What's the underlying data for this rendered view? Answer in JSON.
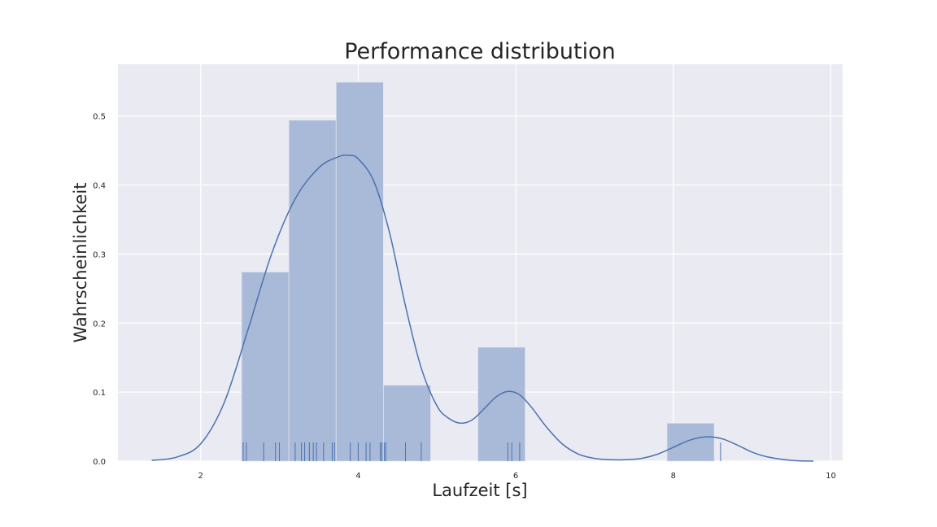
{
  "chart_data": {
    "type": "histogram",
    "title": "Performance distribution",
    "xlabel": "Laufzeit [s]",
    "ylabel": "Wahrscheinlichkeit",
    "xlim": [
      0.95,
      10.15
    ],
    "ylim": [
      0.0,
      0.575
    ],
    "xticks": [
      2,
      4,
      6,
      8,
      10
    ],
    "yticks": [
      0.0,
      0.1,
      0.2,
      0.3,
      0.4,
      0.5
    ],
    "grid": true,
    "colors": {
      "background": "#eaeaf2",
      "grid": "#ffffff",
      "bar": "#a9b9d8",
      "line": "#4c72b0",
      "bar_edge": "#dfe4ee"
    },
    "histogram": {
      "bins": [
        {
          "x0": 2.52,
          "x1": 3.12,
          "density": 0.274
        },
        {
          "x0": 3.12,
          "x1": 3.72,
          "density": 0.494
        },
        {
          "x0": 3.72,
          "x1": 4.32,
          "density": 0.549
        },
        {
          "x0": 4.32,
          "x1": 4.92,
          "density": 0.11
        },
        {
          "x0": 4.92,
          "x1": 5.52,
          "density": 0.0
        },
        {
          "x0": 5.52,
          "x1": 6.12,
          "density": 0.165
        },
        {
          "x0": 6.12,
          "x1": 6.72,
          "density": 0.0
        },
        {
          "x0": 6.72,
          "x1": 7.32,
          "density": 0.0
        },
        {
          "x0": 7.32,
          "x1": 7.92,
          "density": 0.0
        },
        {
          "x0": 7.92,
          "x1": 8.52,
          "density": 0.055
        }
      ]
    },
    "kde": {
      "x": [
        1.38,
        1.7,
        2.0,
        2.3,
        2.6,
        2.9,
        3.2,
        3.5,
        3.75,
        3.88,
        4.0,
        4.2,
        4.4,
        4.6,
        4.8,
        5.0,
        5.15,
        5.3,
        5.45,
        5.6,
        5.75,
        5.9,
        6.05,
        6.2,
        6.4,
        6.6,
        6.8,
        7.0,
        7.2,
        7.4,
        7.6,
        7.8,
        8.0,
        8.2,
        8.4,
        8.6,
        8.8,
        9.0,
        9.2,
        9.5,
        9.78
      ],
      "y": [
        0.001,
        0.006,
        0.025,
        0.085,
        0.19,
        0.3,
        0.38,
        0.425,
        0.441,
        0.443,
        0.438,
        0.405,
        0.33,
        0.225,
        0.135,
        0.08,
        0.062,
        0.055,
        0.06,
        0.076,
        0.093,
        0.101,
        0.096,
        0.078,
        0.048,
        0.024,
        0.01,
        0.004,
        0.002,
        0.002,
        0.004,
        0.01,
        0.02,
        0.03,
        0.035,
        0.033,
        0.024,
        0.013,
        0.006,
        0.001,
        0.0
      ]
    },
    "rug": [
      2.54,
      2.58,
      2.8,
      2.95,
      3.0,
      3.2,
      3.28,
      3.32,
      3.38,
      3.43,
      3.47,
      3.56,
      3.67,
      3.7,
      3.9,
      4.0,
      4.1,
      4.15,
      4.28,
      4.3,
      4.33,
      4.35,
      4.6,
      4.8,
      5.9,
      5.95,
      6.05,
      8.6
    ]
  }
}
